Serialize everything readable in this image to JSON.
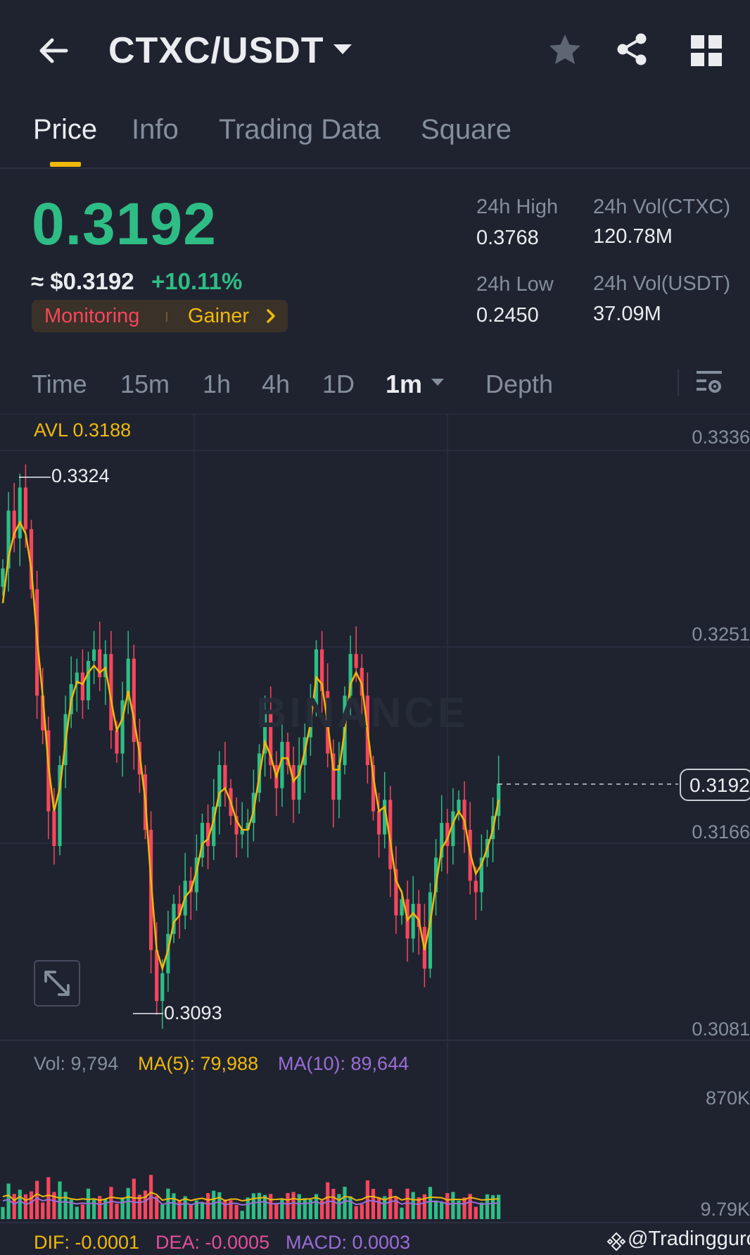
{
  "header": {
    "pair": "CTXC/USDT",
    "back_icon": "arrow-left-icon",
    "dropdown_icon": "caret-down-icon",
    "favorite_icon": "star-icon",
    "share_icon": "share-icon",
    "menu_icon": "grid-icon"
  },
  "tabs": [
    {
      "label": "Price",
      "active": true
    },
    {
      "label": "Info",
      "active": false
    },
    {
      "label": "Trading Data",
      "active": false
    },
    {
      "label": "Square",
      "active": false
    }
  ],
  "ticker": {
    "last_price": "0.3192",
    "usd_value": "≈ $0.3192",
    "change": "+10.11%",
    "tag_monitoring": "Monitoring",
    "tag_gainer": "Gainer"
  },
  "stats": {
    "high_label": "24h High",
    "high_value": "0.3768",
    "low_label": "24h Low",
    "low_value": "0.2450",
    "vol_base_label": "24h Vol(CTXC)",
    "vol_base_value": "120.78M",
    "vol_quote_label": "24h Vol(USDT)",
    "vol_quote_value": "37.09M"
  },
  "intervals": [
    {
      "label": "Time",
      "active": false
    },
    {
      "label": "15m",
      "active": false
    },
    {
      "label": "1h",
      "active": false
    },
    {
      "label": "4h",
      "active": false
    },
    {
      "label": "1D",
      "active": false
    },
    {
      "label": "1m",
      "active": true
    },
    {
      "label": "Depth",
      "active": false
    }
  ],
  "chart": {
    "avl": "AVL 0.3188",
    "axis": [
      "0.3336",
      "0.3251",
      "0.3166",
      "0.3081"
    ],
    "high_marker": "0.3324",
    "low_marker": "0.3093",
    "current_price": "0.3192",
    "watermark": "BINANCE",
    "vol_label": "Vol: 9,794",
    "ma5_label": "MA(5): 79,988",
    "ma10_label": "MA(10): 89,644",
    "vol_axis_top": "870K",
    "vol_axis_bottom": "9.79K",
    "dif_label": "DIF: -0.0001",
    "dea_label": "DEA: -0.0005",
    "macd_label": "MACD: 0.0003"
  },
  "colors": {
    "up": "#2ebd85",
    "down": "#f6465d",
    "accent": "#f0b90b",
    "ma10": "#9b6dd7",
    "dea": "#e44f9b",
    "background": "#1f2330"
  },
  "credit": "@Tradingguro",
  "chart_data": {
    "type": "candlestick",
    "interval": "1m",
    "ylim": [
      0.3081,
      0.3336
    ],
    "y_ticks": [
      0.3336,
      0.3251,
      0.3166,
      0.3081
    ],
    "highest": 0.3324,
    "lowest": 0.3093,
    "last": 0.3192,
    "close": [
      0.3285,
      0.331,
      0.3298,
      0.332,
      0.3302,
      0.3276,
      0.323,
      0.3215,
      0.318,
      0.3165,
      0.32,
      0.3222,
      0.3235,
      0.324,
      0.3228,
      0.3245,
      0.325,
      0.3238,
      0.3248,
      0.3215,
      0.3205,
      0.3228,
      0.3246,
      0.321,
      0.3196,
      0.3172,
      0.312,
      0.3098,
      0.311,
      0.3127,
      0.314,
      0.3135,
      0.315,
      0.3145,
      0.316,
      0.3175,
      0.3165,
      0.3182,
      0.32,
      0.319,
      0.3178,
      0.317,
      0.3172,
      0.3175,
      0.3188,
      0.3205,
      0.3222,
      0.32,
      0.319,
      0.321,
      0.32,
      0.3185,
      0.32,
      0.3212,
      0.3225,
      0.325,
      0.3232,
      0.3205,
      0.3185,
      0.32,
      0.323,
      0.3248,
      0.3242,
      0.323,
      0.32,
      0.318,
      0.317,
      0.3185,
      0.3155,
      0.3135,
      0.3142,
      0.3125,
      0.314,
      0.313,
      0.3112,
      0.3145,
      0.316,
      0.3175,
      0.3165,
      0.318,
      0.3185,
      0.3172,
      0.315,
      0.3145,
      0.316,
      0.3168,
      0.3178,
      0.3192
    ],
    "ma_close": [
      0.327,
      0.329,
      0.33,
      0.3305,
      0.33,
      0.3285,
      0.3255,
      0.323,
      0.32,
      0.318,
      0.319,
      0.321,
      0.3228,
      0.3236,
      0.3235,
      0.324,
      0.3243,
      0.324,
      0.3242,
      0.3228,
      0.3215,
      0.322,
      0.3232,
      0.322,
      0.3205,
      0.3185,
      0.315,
      0.312,
      0.3112,
      0.312,
      0.3132,
      0.3135,
      0.3143,
      0.3146,
      0.3154,
      0.3166,
      0.3168,
      0.3176,
      0.3188,
      0.319,
      0.3184,
      0.3176,
      0.3172,
      0.3172,
      0.318,
      0.3195,
      0.321,
      0.3204,
      0.3195,
      0.3203,
      0.3203,
      0.3193,
      0.3196,
      0.3206,
      0.3218,
      0.3238,
      0.3235,
      0.3218,
      0.3198,
      0.3198,
      0.3215,
      0.3235,
      0.324,
      0.3235,
      0.3215,
      0.3195,
      0.318,
      0.3182,
      0.3167,
      0.315,
      0.3145,
      0.3133,
      0.3136,
      0.3133,
      0.312,
      0.3132,
      0.3148,
      0.3164,
      0.3168,
      0.3175,
      0.318,
      0.3176,
      0.3162,
      0.3153,
      0.3157,
      0.3164,
      0.3172,
      0.3185
    ]
  }
}
